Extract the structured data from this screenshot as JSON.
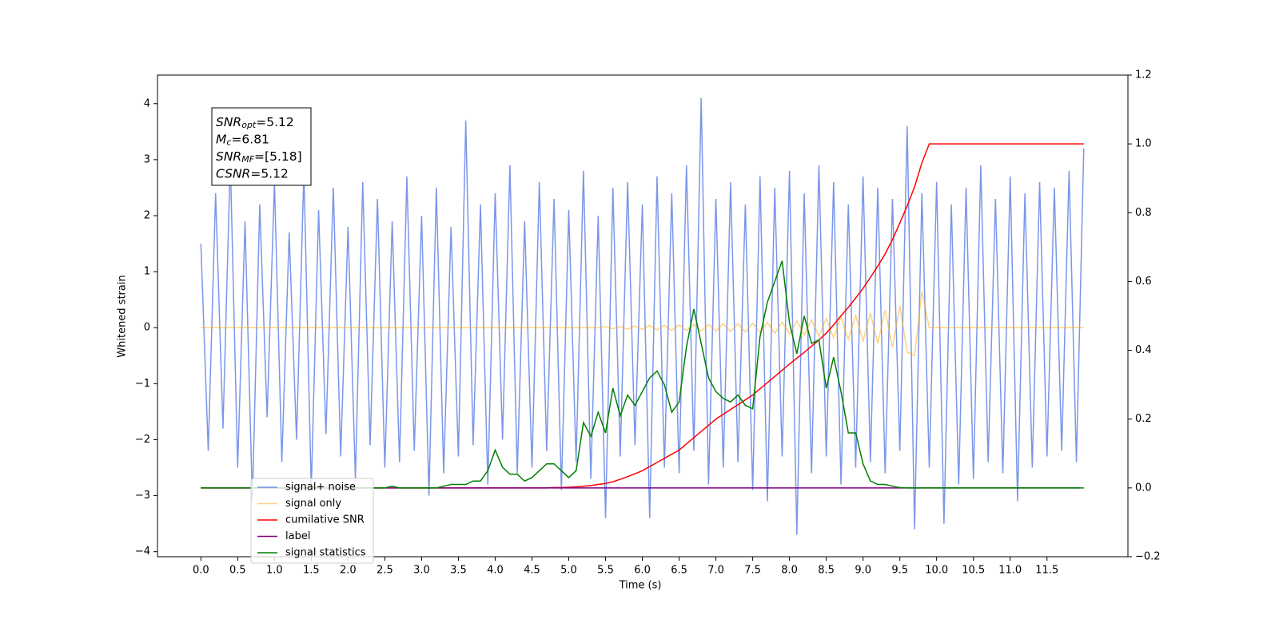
{
  "chart_data": {
    "type": "line",
    "xlabel": "Time (s)",
    "ylabel": "Whitened strain",
    "xlim": [
      -0.59,
      12.6
    ],
    "ylim": [
      -4.09,
      4.51
    ],
    "y2lim": [
      -0.2,
      1.2
    ],
    "xticks": [
      {
        "value": 0,
        "label": "0.0"
      },
      0.5,
      {
        "value": 1,
        "label": "1.0"
      },
      1.5,
      {
        "value": 2,
        "label": "2.0"
      },
      2.5,
      {
        "value": 3,
        "label": "3.0"
      },
      3.5,
      {
        "value": 4,
        "label": "4.0"
      },
      4.5,
      {
        "value": 5,
        "label": "5.0"
      },
      5.5,
      {
        "value": 6,
        "label": "6.0"
      },
      6.5,
      {
        "value": 7,
        "label": "7.0"
      },
      7.5,
      {
        "value": 8,
        "label": "8.0"
      },
      8.5,
      {
        "value": 9,
        "label": "9.0"
      },
      9.5,
      {
        "value": 10,
        "label": "10.0"
      },
      10.5,
      {
        "value": 11,
        "label": "11.0"
      },
      11.5
    ],
    "yticks": [
      {
        "value": -4,
        "label": "−4"
      },
      {
        "value": -3,
        "label": "−3"
      },
      {
        "value": -2,
        "label": "−2"
      },
      {
        "value": -1,
        "label": "−1"
      },
      0,
      1,
      2,
      3,
      4
    ],
    "y2ticks": [
      {
        "value": -0.2,
        "label": "−0.2"
      },
      {
        "value": 0,
        "label": "0.0"
      },
      0.2,
      0.4,
      0.6,
      0.8,
      {
        "value": 1,
        "label": "1.0"
      },
      1.2
    ],
    "legend": "lower left",
    "annotation": {
      "lines": [
        {
          "text": "SNR",
          "sub": "opt",
          "rest": "=5.12"
        },
        {
          "text": "M",
          "sub": "c",
          "rest": "=6.81"
        },
        {
          "text": "SNR",
          "sub": "MF",
          "rest": "=[5.18]"
        },
        {
          "text": "CSNR",
          "rest": "=5.12"
        }
      ]
    },
    "x": [
      0,
      0.1,
      0.2,
      0.3,
      0.4,
      0.5,
      0.6,
      0.7,
      0.8,
      0.9,
      1,
      1.1,
      1.2,
      1.3,
      1.4,
      1.5,
      1.6,
      1.7,
      1.8,
      1.9,
      2,
      2.1,
      2.2,
      2.3,
      2.4,
      2.5,
      2.6,
      2.7,
      2.8,
      2.9,
      3,
      3.1,
      3.2,
      3.3,
      3.4,
      3.5,
      3.6,
      3.7,
      3.8,
      3.9,
      4,
      4.1,
      4.2,
      4.3,
      4.4,
      4.5,
      4.6,
      4.7,
      4.8,
      4.9,
      5,
      5.1,
      5.2,
      5.3,
      5.4,
      5.5,
      5.6,
      5.7,
      5.8,
      5.9,
      6,
      6.1,
      6.2,
      6.3,
      6.4,
      6.5,
      6.6,
      6.7,
      6.8,
      6.9,
      7,
      7.1,
      7.2,
      7.3,
      7.4,
      7.5,
      7.6,
      7.7,
      7.8,
      7.9,
      8,
      8.1,
      8.2,
      8.3,
      8.4,
      8.5,
      8.6,
      8.7,
      8.8,
      8.9,
      9,
      9.1,
      9.2,
      9.3,
      9.4,
      9.5,
      9.6,
      9.7,
      9.8,
      9.9,
      10,
      10.1,
      10.2,
      10.3,
      10.4,
      10.5,
      10.6,
      10.7,
      10.8,
      10.9,
      11,
      11.1,
      11.2,
      11.3,
      11.4,
      11.5,
      11.6,
      11.7,
      11.8,
      11.9,
      12
    ],
    "series": [
      {
        "name": "signal+ noise",
        "color": "royalblue",
        "opacity": 0.7,
        "values": [
          1.5,
          -2.2,
          2.4,
          -1.8,
          3.0,
          -2.5,
          1.9,
          -3.1,
          2.2,
          -1.6,
          2.6,
          -2.4,
          1.7,
          -2.0,
          2.8,
          -2.9,
          2.1,
          -1.9,
          2.5,
          -2.3,
          1.8,
          -2.7,
          2.6,
          -2.1,
          2.3,
          -2.5,
          1.9,
          -2.4,
          2.7,
          -2.2,
          2.0,
          -3.0,
          2.5,
          -2.6,
          1.8,
          -2.3,
          3.7,
          -2.1,
          2.2,
          -2.8,
          2.4,
          -2.0,
          2.9,
          -2.6,
          1.9,
          -2.5,
          2.6,
          -2.2,
          2.3,
          -2.9,
          2.1,
          -2.4,
          2.8,
          -2.7,
          2.0,
          -3.4,
          2.5,
          -2.3,
          2.6,
          -2.1,
          2.2,
          -3.4,
          2.7,
          -2.5,
          2.4,
          -2.6,
          2.9,
          -2.2,
          4.1,
          -2.8,
          2.3,
          -2.5,
          2.6,
          -2.4,
          2.2,
          -2.9,
          2.7,
          -3.1,
          2.5,
          -2.3,
          2.8,
          -3.7,
          2.4,
          -2.6,
          2.9,
          -2.3,
          2.6,
          -2.8,
          2.2,
          -2.5,
          2.7,
          -2.4,
          2.5,
          -2.6,
          2.3,
          -2.2,
          3.6,
          -3.6,
          2.4,
          -2.5,
          2.6,
          -3.5,
          2.2,
          -2.8,
          2.5,
          -2.7,
          2.9,
          -2.4,
          2.3,
          -2.6,
          2.7,
          -3.1,
          2.4,
          -2.5,
          2.6,
          -2.3,
          2.5,
          -2.2,
          2.8,
          -2.4,
          3.2
        ]
      },
      {
        "name": "signal only",
        "color": "orange",
        "opacity": 0.5,
        "values": [
          0,
          0,
          0,
          0,
          0,
          0,
          0,
          0,
          0,
          0,
          0,
          0,
          0,
          0,
          0,
          0,
          0,
          0,
          0,
          0,
          0,
          0,
          0,
          0,
          0,
          0,
          0,
          0,
          0,
          0,
          0,
          0,
          0,
          0,
          0,
          0,
          0,
          0,
          0,
          0,
          0,
          0,
          0,
          0,
          0,
          0,
          0,
          0,
          0,
          0,
          0,
          0,
          0,
          0,
          0,
          0.02,
          -0.02,
          0.02,
          -0.03,
          0.03,
          -0.03,
          0.04,
          -0.04,
          0.04,
          -0.05,
          0.05,
          -0.05,
          0.06,
          -0.06,
          0.06,
          -0.06,
          0.07,
          -0.07,
          0.07,
          -0.08,
          0.08,
          -0.09,
          0.09,
          -0.1,
          0.1,
          -0.11,
          0.12,
          -0.13,
          0.14,
          -0.15,
          0.16,
          -0.18,
          0.19,
          -0.21,
          0.22,
          -0.24,
          0.26,
          -0.28,
          0.31,
          -0.35,
          0.39,
          -0.44,
          -0.5,
          0.65,
          0,
          0,
          0,
          0,
          0,
          0,
          0,
          0,
          0,
          0,
          0,
          0,
          0,
          0,
          0,
          0,
          0,
          0,
          0,
          0,
          0,
          0
        ]
      },
      {
        "name": "cumilative SNR",
        "color": "red",
        "axis": "y2",
        "values": [
          0,
          0,
          0,
          0,
          0,
          0,
          0,
          0,
          0,
          0,
          0,
          0,
          0,
          0,
          0,
          0,
          0,
          0,
          0,
          0,
          0,
          0,
          0,
          0,
          0,
          0,
          0,
          0,
          0,
          0,
          0,
          0,
          0,
          0,
          0,
          0,
          0,
          0,
          0,
          0,
          0,
          0,
          0,
          0,
          0,
          0,
          0,
          0,
          0.001,
          0.001,
          0.002,
          0.003,
          0.005,
          0.007,
          0.01,
          0.013,
          0.018,
          0.025,
          0.033,
          0.041,
          0.05,
          0.062,
          0.074,
          0.086,
          0.098,
          0.11,
          0.128,
          0.146,
          0.164,
          0.182,
          0.2,
          0.214,
          0.228,
          0.242,
          0.256,
          0.27,
          0.288,
          0.306,
          0.324,
          0.342,
          0.36,
          0.377,
          0.394,
          0.412,
          0.43,
          0.45,
          0.474,
          0.5,
          0.525,
          0.552,
          0.58,
          0.612,
          0.645,
          0.68,
          0.722,
          0.77,
          0.82,
          0.875,
          0.945,
          1.0,
          1.0,
          1.0,
          1.0,
          1.0,
          1.0,
          1.0,
          1.0,
          1.0,
          1.0,
          1.0,
          1.0,
          1.0,
          1.0,
          1.0,
          1.0,
          1.0,
          1.0,
          1.0,
          1.0,
          1.0,
          1.0
        ]
      },
      {
        "name": "label",
        "color": "purple",
        "axis": "y2",
        "x": [
          0,
          11.95
        ],
        "values": [
          0,
          0
        ]
      },
      {
        "name": "signal statistics",
        "color": "green",
        "axis": "y2",
        "values": [
          0,
          0,
          0,
          0,
          0,
          0,
          0,
          0,
          0,
          0,
          0,
          0,
          0,
          0,
          0,
          0,
          0,
          0,
          0,
          0,
          0,
          0,
          0,
          0,
          0,
          0,
          0.005,
          0,
          0,
          0,
          0,
          0,
          0,
          0.005,
          0.01,
          0.01,
          0.01,
          0.02,
          0.02,
          0.05,
          0.11,
          0.06,
          0.04,
          0.04,
          0.02,
          0.03,
          0.05,
          0.07,
          0.07,
          0.05,
          0.03,
          0.05,
          0.19,
          0.15,
          0.22,
          0.16,
          0.29,
          0.21,
          0.27,
          0.24,
          0.28,
          0.32,
          0.34,
          0.3,
          0.22,
          0.25,
          0.41,
          0.52,
          0.42,
          0.32,
          0.28,
          0.26,
          0.25,
          0.27,
          0.24,
          0.23,
          0.44,
          0.54,
          0.6,
          0.66,
          0.48,
          0.39,
          0.5,
          0.42,
          0.43,
          0.29,
          0.38,
          0.28,
          0.16,
          0.16,
          0.07,
          0.02,
          0.01,
          0.01,
          0.005,
          0.001,
          0,
          0,
          0,
          0,
          0,
          0,
          0,
          0,
          0,
          0,
          0,
          0,
          0,
          0,
          0,
          0,
          0,
          0,
          0,
          0,
          0,
          0,
          0,
          0,
          0
        ]
      }
    ]
  }
}
